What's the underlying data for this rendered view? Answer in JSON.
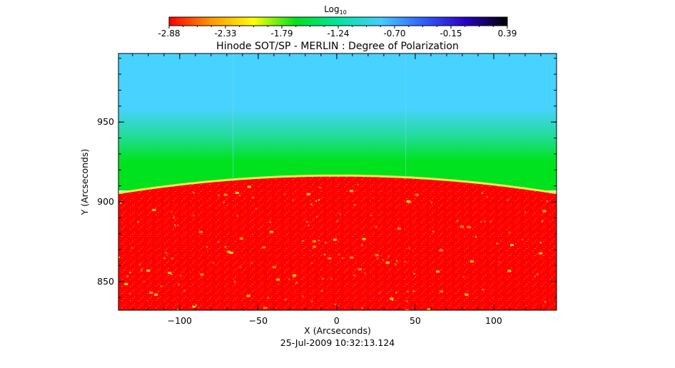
{
  "chart_data": {
    "type": "heatmap",
    "title": "Hinode SOT/SP - MERLIN : Degree of Polarization",
    "xlabel": "X (Arcseconds)",
    "ylabel": "Y (Arcseconds)",
    "timestamp": "25-Jul-2009 10:32:13.124",
    "xlim": [
      -139,
      140
    ],
    "ylim": [
      832,
      993
    ],
    "x_ticks": [
      -100,
      -50,
      0,
      50,
      100
    ],
    "y_ticks": [
      850,
      900,
      950
    ],
    "colorbar": {
      "label": "Log",
      "label_subscript": "10",
      "scale": "log10",
      "ticks": [
        "-2.88",
        "-2.33",
        "-1.79",
        "-1.24",
        "-0.70",
        "-0.15",
        "0.39"
      ],
      "range": [
        -2.88,
        0.39
      ],
      "colormap": [
        "#ff0000",
        "#ff9900",
        "#ffff00",
        "#00e21e",
        "#00e6a0",
        "#40d0ff",
        "#3060ff",
        "#2a00c8",
        "#000000"
      ]
    },
    "content": {
      "limb_height_arcsec_at_x0": 916,
      "limb_height_arcsec_at_xmin": 905,
      "limb_height_arcsec_at_xmax": 905,
      "disk_value_log10": -2.88,
      "limb_value_log10": -1.6,
      "off_limb_value_log10": -0.8,
      "colors": {
        "disk": "#ff0000",
        "limb": "#e5ee4a",
        "transition": "#00e21e",
        "off_limb": "#48d2ff"
      }
    }
  }
}
